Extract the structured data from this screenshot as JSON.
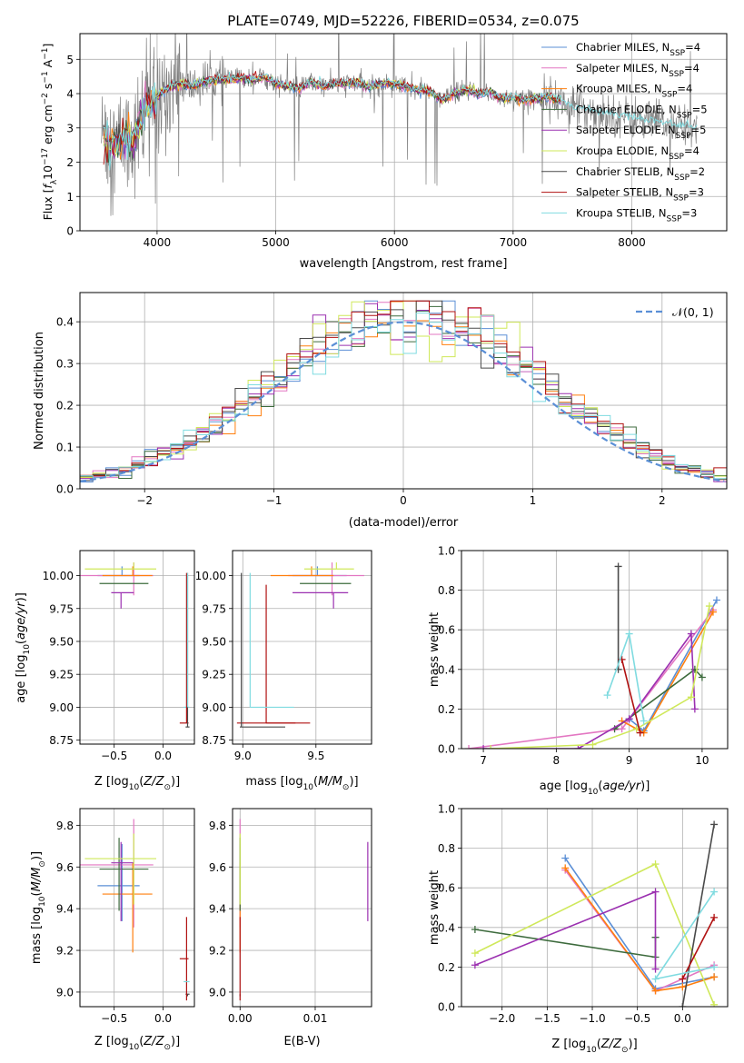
{
  "figure_title": "PLATE=0749, MJD=52226, FIBERID=0534, z=0.075",
  "palette": {
    "Chabrier MILES": "#5b8fd6",
    "Salpeter MILES": "#e377c2",
    "Kroupa MILES": "#ff7f0e",
    "Chabrier ELODIE": "#3d6b3d",
    "Salpeter ELODIE": "#9b30b0",
    "Kroupa ELODIE": "#cfe85a",
    "Chabrier STELIB": "#4a4a4a",
    "Salpeter STELIB": "#b01010",
    "Kroupa STELIB": "#7fdbe0",
    "data": "#7f7f7f"
  },
  "chart_data": [
    {
      "id": "spectrum",
      "type": "line",
      "title": "PLATE=0749, MJD=52226, FIBERID=0534, z=0.075",
      "xlabel": "wavelength [Angstrom, rest frame]",
      "ylabel": "Flux [f_λ 10^-17 erg cm^-2 s^-1 A^-1]",
      "xlim": [
        3350,
        8800
      ],
      "ylim": [
        0,
        5.75
      ],
      "xticks": [
        4000,
        5000,
        6000,
        7000,
        8000
      ],
      "yticks": [
        0,
        1,
        2,
        3,
        4,
        5
      ],
      "legend_position": "upper right",
      "legend": [
        {
          "label": "Chabrier MILES, N",
          "sub": "SSP",
          "suffix": "=4",
          "model": "Chabrier MILES"
        },
        {
          "label": "Salpeter MILES, N",
          "sub": "SSP",
          "suffix": "=4",
          "model": "Salpeter MILES"
        },
        {
          "label": "Kroupa MILES, N",
          "sub": "SSP",
          "suffix": "=4",
          "model": "Kroupa MILES"
        },
        {
          "label": "Chabrier ELODIE, N",
          "sub": "SSP",
          "suffix": "=5",
          "model": "Chabrier ELODIE"
        },
        {
          "label": "Salpeter ELODIE, N",
          "sub": "SSP",
          "suffix": "=5",
          "model": "Salpeter ELODIE"
        },
        {
          "label": "Kroupa ELODIE, N",
          "sub": "SSP",
          "suffix": "=4",
          "model": "Kroupa ELODIE"
        },
        {
          "label": "Chabrier STELIB, N",
          "sub": "SSP",
          "suffix": "=2",
          "model": "Chabrier STELIB"
        },
        {
          "label": "Salpeter STELIB, N",
          "sub": "SSP",
          "suffix": "=3",
          "model": "Salpeter STELIB"
        },
        {
          "label": "Kroupa STELIB, N",
          "sub": "SSP",
          "suffix": "=3",
          "model": "Kroupa STELIB"
        }
      ],
      "continuum": {
        "x": [
          3540,
          3600,
          3700,
          3800,
          3900,
          4000,
          4100,
          4200,
          4300,
          4400,
          4500,
          4600,
          4700,
          4800,
          4900,
          5000,
          5100,
          5200,
          5300,
          5400,
          5500,
          5600,
          5700,
          5800,
          5900,
          6000,
          6100,
          6200,
          6300,
          6400,
          6500,
          6600,
          6700,
          6800,
          6900,
          7000,
          7100,
          7200,
          7300,
          7400,
          7500
        ],
        "y": [
          2.8,
          2.5,
          2.7,
          2.6,
          3.6,
          3.9,
          4.2,
          4.3,
          4.2,
          4.35,
          4.4,
          4.4,
          4.45,
          4.4,
          4.5,
          4.3,
          4.2,
          4.15,
          4.35,
          4.2,
          4.3,
          4.3,
          4.3,
          4.2,
          4.3,
          4.3,
          4.2,
          4.1,
          4.05,
          3.8,
          4.0,
          4.1,
          4.0,
          4.05,
          3.85,
          3.9,
          3.8,
          3.85,
          3.9,
          3.8,
          3.6
        ]
      },
      "data_x_range": [
        3530,
        8550
      ]
    },
    {
      "id": "residuals",
      "type": "histogram",
      "xlabel": "(data-model)/error",
      "ylabel": "Normed distribution",
      "xlim": [
        -2.5,
        2.5
      ],
      "ylim": [
        0,
        0.47
      ],
      "xticks": [
        -2,
        -1,
        0,
        1,
        2
      ],
      "yticks": [
        0.0,
        0.1,
        0.2,
        0.3,
        0.4
      ],
      "bin_width": 0.1,
      "reference_curve": {
        "label": "𝒩(0, 1)",
        "mean": 0,
        "sigma": 1,
        "color": "#5b8fd6"
      },
      "legend_position": "upper right"
    },
    {
      "id": "z-age",
      "type": "errorbar",
      "xlabel": "Z [log10(Z/Z☉)]",
      "ylabel": "age  [log10(age/yr)]",
      "xlim": [
        -0.85,
        0.32
      ],
      "ylim": [
        8.72,
        10.19
      ],
      "xticks": [
        -0.5,
        0.0
      ],
      "yticks": [
        8.75,
        9.0,
        9.25,
        9.5,
        9.75,
        10.0
      ]
    },
    {
      "id": "mass-age",
      "type": "errorbar",
      "xlabel": "mass [log10(M/M☉)]",
      "ylabel": "",
      "xlim": [
        8.93,
        9.88
      ],
      "ylim": [
        8.72,
        10.19
      ],
      "xticks": [
        9.0,
        9.5
      ],
      "yticks": [
        8.75,
        9.0,
        9.25,
        9.5,
        9.75,
        10.0
      ]
    },
    {
      "id": "age-weight",
      "type": "line",
      "xlabel": "age  [log10(age/yr)]",
      "ylabel": "mass weight",
      "xlim": [
        6.7,
        10.35
      ],
      "ylim": [
        0,
        1.0
      ],
      "xticks": [
        7,
        8,
        9,
        10
      ],
      "yticks": [
        0.0,
        0.2,
        0.4,
        0.6,
        0.8,
        1.0
      ]
    },
    {
      "id": "z-mass",
      "type": "errorbar",
      "xlabel": "Z [log10(Z/Z☉)]",
      "ylabel": "mass [log10(M/M☉)]",
      "xlim": [
        -0.85,
        0.32
      ],
      "ylim": [
        8.93,
        9.88
      ],
      "xticks": [
        -0.5,
        0.0
      ],
      "yticks": [
        9.0,
        9.2,
        9.4,
        9.6,
        9.8
      ]
    },
    {
      "id": "ebv-mass",
      "type": "errorbar",
      "xlabel": "E(B-V)",
      "ylabel": "",
      "xlim": [
        -0.001,
        0.0175
      ],
      "ylim": [
        8.93,
        9.88
      ],
      "xticks": [
        0.0,
        0.01
      ],
      "yticks": [
        9.0,
        9.2,
        9.4,
        9.6,
        9.8
      ]
    },
    {
      "id": "z-weight",
      "type": "line",
      "xlabel": "Z [log10(Z/Z☉)]",
      "ylabel": "mass weight",
      "xlim": [
        -2.45,
        0.5
      ],
      "ylim": [
        0,
        1.0
      ],
      "xticks": [
        -2.0,
        -1.5,
        -1.0,
        -0.5,
        0.0
      ],
      "yticks": [
        0.0,
        0.2,
        0.4,
        0.6,
        0.8,
        1.0
      ]
    }
  ],
  "models": [
    {
      "name": "Chabrier MILES",
      "age": 10.0,
      "age_err": [
        0.0,
        0.07
      ],
      "Z": -0.42,
      "Z_err": [
        0.25,
        0.18
      ],
      "mass": 9.51,
      "mass_err": [
        0.17,
        0.2
      ],
      "ebv": 0.0,
      "ebv_err": [
        0,
        0
      ],
      "age_w": {
        "age": [
          9.0,
          9.2,
          10.2
        ],
        "w": [
          0.15,
          0.09,
          0.75
        ]
      },
      "z_w": {
        "Z": [
          -1.3,
          -0.3,
          0.35
        ],
        "w": [
          0.75,
          0.09,
          0.15
        ]
      }
    },
    {
      "name": "Salpeter MILES",
      "age": 10.0,
      "age_err": [
        0.15,
        0.1
      ],
      "Z": -0.3,
      "Z_err": [
        0.55,
        0.2
      ],
      "mass": 9.61,
      "mass_err": [
        0.3,
        0.22
      ],
      "ebv": 0.0,
      "ebv_err": [
        0,
        0
      ],
      "age_w": {
        "age": [
          6.8,
          8.9,
          10.15
        ],
        "w": [
          0.0,
          0.1,
          0.7
        ]
      },
      "z_w": {
        "Z": [
          -1.3,
          -0.3,
          0.35
        ],
        "w": [
          0.69,
          0.08,
          0.21
        ]
      }
    },
    {
      "name": "Kroupa MILES",
      "age": 10.0,
      "age_err": [
        0.0,
        0.07
      ],
      "Z": -0.31,
      "Z_err": [
        0.31,
        0.2
      ],
      "mass": 9.47,
      "mass_err": [
        0.28,
        0.15
      ],
      "ebv": 0.0,
      "ebv_err": [
        0,
        0
      ],
      "age_w": {
        "age": [
          8.9,
          9.2,
          10.15
        ],
        "w": [
          0.14,
          0.08,
          0.69
        ]
      },
      "z_w": {
        "Z": [
          -1.3,
          -0.3,
          0.0,
          0.35
        ],
        "w": [
          0.7,
          0.08,
          0.1,
          0.15
        ]
      }
    },
    {
      "name": "Chabrier ELODIE",
      "age": 9.94,
      "age_err": [
        0.0,
        0.0
      ],
      "Z": -0.45,
      "Z_err": [
        0.2,
        0.3
      ],
      "mass": 9.59,
      "mass_err": [
        0.2,
        0.15
      ],
      "ebv": 0.0,
      "ebv_err": [
        0,
        0
      ],
      "age_w": {
        "age": [
          8.8,
          9.9,
          10.0
        ],
        "w": [
          0.1,
          0.4,
          0.36
        ]
      },
      "z_w": {
        "Z": [
          -2.3,
          -0.3,
          -0.3
        ],
        "w": [
          0.39,
          0.25,
          0.35
        ]
      }
    },
    {
      "name": "Salpeter ELODIE",
      "age": 9.87,
      "age_err": [
        0.12,
        0.0
      ],
      "Z": -0.43,
      "Z_err": [
        0.1,
        0.13
      ],
      "mass": 9.62,
      "mass_err": [
        0.28,
        0.1
      ],
      "ebv": 0.017,
      "ebv_err": [
        0.0,
        0.0
      ],
      "age_w": {
        "age": [
          7.0,
          8.3,
          9.0,
          9.85,
          9.9
        ],
        "w": [
          0.0,
          0.0,
          0.15,
          0.58,
          0.2
        ]
      },
      "z_w": {
        "Z": [
          -2.3,
          -0.3,
          -0.3
        ],
        "w": [
          0.21,
          0.58,
          0.19
        ]
      }
    },
    {
      "name": "Kroupa ELODIE",
      "age": 10.05,
      "age_err": [
        0.0,
        0.05
      ],
      "Z": -0.3,
      "Z_err": [
        0.5,
        0.23
      ],
      "mass": 9.64,
      "mass_err": [
        0.22,
        0.12
      ],
      "ebv": 0.0,
      "ebv_err": [
        0,
        0
      ],
      "age_w": {
        "age": [
          7.1,
          8.5,
          9.1,
          9.85,
          10.1
        ],
        "w": [
          0.0,
          0.02,
          0.1,
          0.26,
          0.72
        ]
      },
      "z_w": {
        "Z": [
          -2.3,
          -0.3,
          0.35
        ],
        "w": [
          0.27,
          0.72,
          0.01
        ]
      }
    },
    {
      "name": "Chabrier STELIB",
      "age": 8.85,
      "age_err": [
        0.0,
        0.0
      ],
      "Z": 0.25,
      "Z_err": [
        0.02,
        0.02
      ],
      "mass": 8.99,
      "mass_err": [
        0.01,
        0.0
      ],
      "ebv": 0.0,
      "ebv_err": [
        0,
        0
      ],
      "age_w": {
        "age": [
          8.85,
          8.85
        ],
        "w": [
          0.92,
          0.4
        ]
      },
      "z_w": {
        "Z": [
          0.0,
          0.35
        ],
        "w": [
          0.0,
          0.92
        ]
      }
    },
    {
      "name": "Salpeter STELIB",
      "age": 8.88,
      "age_err": [
        0.0,
        0.0
      ],
      "Z": 0.24,
      "Z_err": [
        0.07,
        0.02
      ],
      "mass": 9.16,
      "mass_err": [
        0.2,
        0.2
      ],
      "ebv": 0.0,
      "ebv_err": [
        0,
        0
      ],
      "age_w": {
        "age": [
          8.9,
          9.15
        ],
        "w": [
          0.45,
          0.08
        ]
      },
      "z_w": {
        "Z": [
          0.0,
          0.35
        ],
        "w": [
          0.14,
          0.45
        ]
      }
    },
    {
      "name": "Kroupa STELIB",
      "age": 9.0,
      "age_err": [
        0.0,
        0.0
      ],
      "Z": 0.25,
      "Z_err": [
        0.04,
        0.02
      ],
      "mass": 9.05,
      "mass_err": [
        0.0,
        0.0
      ],
      "ebv": 0.0,
      "ebv_err": [
        0,
        0
      ],
      "age_w": {
        "age": [
          8.7,
          9.0,
          9.2
        ],
        "w": [
          0.27,
          0.58,
          0.14
        ]
      },
      "z_w": {
        "Z": [
          0.35,
          -0.3,
          0.35
        ],
        "w": [
          0.58,
          0.14,
          0.2
        ]
      }
    }
  ]
}
